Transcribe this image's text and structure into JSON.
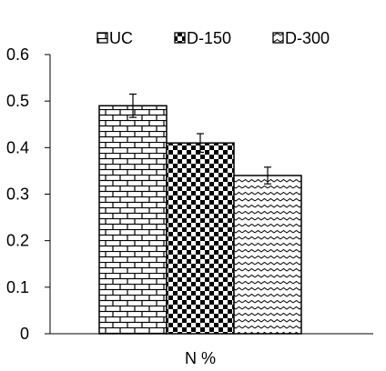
{
  "chart_data": {
    "type": "bar",
    "title": "",
    "xlabel": "",
    "ylabel": "",
    "categories": [
      "N %"
    ],
    "series": [
      {
        "name": "UC",
        "values": [
          0.49
        ],
        "error": [
          0.025
        ],
        "pattern": "brick"
      },
      {
        "name": "D-150",
        "values": [
          0.41
        ],
        "error": [
          0.02
        ],
        "pattern": "checker"
      },
      {
        "name": "D-300",
        "values": [
          0.34
        ],
        "error": [
          0.018
        ],
        "pattern": "wave"
      }
    ],
    "ylim": [
      0,
      0.6
    ],
    "yticks": [
      "0",
      "0.1",
      "0.2",
      "0.3",
      "0.4",
      "0.5",
      "0.6"
    ],
    "grid": false,
    "legend_position": "top"
  }
}
